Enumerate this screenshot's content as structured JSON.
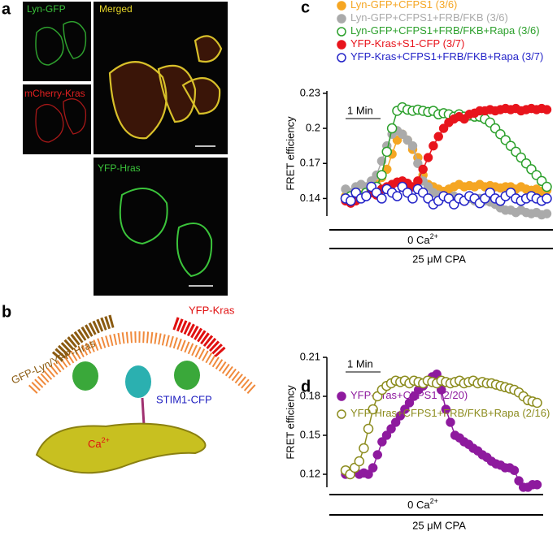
{
  "panel_a": {
    "letter": "a",
    "labels": [
      "Lyn-GFP",
      "mCherry-Kras",
      "Merged",
      "YFP-Hras"
    ]
  },
  "panel_b": {
    "letter": "b",
    "labels": [
      "GFP-Lyn/YFP-Hras",
      "YFP-Kras",
      "STIM1-CFP"
    ],
    "ion": "Ca",
    "ion_charge": "2+"
  },
  "chart_data": [
    {
      "type": "line",
      "panel": "c",
      "ylabel": "FRET efficiency",
      "ylim": [
        0.125,
        0.232
      ],
      "yticks": [
        0.14,
        0.17,
        0.2,
        0.23
      ],
      "annotations": {
        "scale_bar": "1 Min",
        "condition": "0 Ca",
        "condition_charge": "2+",
        "treatment": "25 μM CPA"
      },
      "series": [
        {
          "name": "Lyn-GFP+CFPS1",
          "count": "(3/6)",
          "color": "#f5a623",
          "marker": "filled",
          "values": [
            0.142,
            0.14,
            0.145,
            0.143,
            0.147,
            0.15,
            0.152,
            0.158,
            0.165,
            0.178,
            0.19,
            0.195,
            0.19,
            0.182,
            0.175,
            0.16,
            0.152,
            0.15,
            0.148,
            0.146,
            0.148,
            0.15,
            0.152,
            0.15,
            0.151,
            0.15,
            0.152,
            0.15,
            0.151,
            0.15,
            0.149,
            0.15,
            0.15,
            0.148,
            0.15,
            0.148,
            0.147,
            0.148,
            0.146,
            0.147
          ]
        },
        {
          "name": "Lyn-GFP+CFPS1+FRB/FKB",
          "count": "(3/6)",
          "color": "#aaaaaa",
          "marker": "filled",
          "values": [
            0.148,
            0.145,
            0.15,
            0.152,
            0.15,
            0.155,
            0.16,
            0.172,
            0.185,
            0.195,
            0.198,
            0.195,
            0.19,
            0.185,
            0.17,
            0.155,
            0.15,
            0.145,
            0.143,
            0.142,
            0.14,
            0.142,
            0.14,
            0.138,
            0.14,
            0.138,
            0.14,
            0.138,
            0.137,
            0.135,
            0.132,
            0.13,
            0.13,
            0.128,
            0.13,
            0.128,
            0.127,
            0.128,
            0.126,
            0.127
          ]
        },
        {
          "name": "Lyn-GFP+CFPS1+FRB/FKB+Rapa",
          "count": "(3/6)",
          "color": "#2ca02c",
          "marker": "open",
          "values": [
            0.14,
            0.142,
            0.145,
            0.142,
            0.145,
            0.148,
            0.15,
            0.16,
            0.18,
            0.2,
            0.215,
            0.218,
            0.216,
            0.215,
            0.216,
            0.215,
            0.214,
            0.215,
            0.212,
            0.213,
            0.212,
            0.21,
            0.212,
            0.21,
            0.211,
            0.21,
            0.21,
            0.208,
            0.205,
            0.2,
            0.195,
            0.19,
            0.185,
            0.18,
            0.175,
            0.17,
            0.165,
            0.16,
            0.155,
            0.15
          ]
        },
        {
          "name": "YFP-Kras+S1-CFP",
          "count": "(3/7)",
          "color": "#e8141c",
          "marker": "filled",
          "values": [
            0.138,
            0.136,
            0.138,
            0.14,
            0.142,
            0.145,
            0.143,
            0.148,
            0.15,
            0.152,
            0.154,
            0.155,
            0.153,
            0.15,
            0.155,
            0.165,
            0.175,
            0.185,
            0.193,
            0.2,
            0.205,
            0.208,
            0.21,
            0.208,
            0.212,
            0.213,
            0.215,
            0.215,
            0.216,
            0.215,
            0.216,
            0.217,
            0.216,
            0.217,
            0.215,
            0.216,
            0.217,
            0.216,
            0.217,
            0.216
          ]
        },
        {
          "name": "YFP-Kras+CFPS1+FRB/FKB+Rapa",
          "count": "(3/7)",
          "color": "#2424c8",
          "marker": "open",
          "values": [
            0.14,
            0.138,
            0.145,
            0.14,
            0.142,
            0.15,
            0.145,
            0.14,
            0.148,
            0.145,
            0.142,
            0.15,
            0.145,
            0.14,
            0.148,
            0.145,
            0.14,
            0.135,
            0.138,
            0.142,
            0.14,
            0.135,
            0.14,
            0.138,
            0.142,
            0.14,
            0.136,
            0.14,
            0.145,
            0.14,
            0.138,
            0.142,
            0.145,
            0.14,
            0.138,
            0.14,
            0.142,
            0.14,
            0.138,
            0.14
          ]
        }
      ]
    },
    {
      "type": "line",
      "panel": "d",
      "ylabel": "FRET efficiency",
      "ylim": [
        0.11,
        0.21
      ],
      "yticks": [
        0.12,
        0.15,
        0.18,
        0.21
      ],
      "annotations": {
        "scale_bar": "1 Min",
        "condition": "0 Ca",
        "condition_charge": "2+",
        "treatment": "25 μM CPA"
      },
      "series": [
        {
          "name": "YFP-Hras+CFPS1",
          "count": "(2/20)",
          "color": "#8e1a9e",
          "marker": "filled",
          "values": [
            0.12,
            0.12,
            0.122,
            0.12,
            0.121,
            0.12,
            0.125,
            0.135,
            0.145,
            0.15,
            0.155,
            0.16,
            0.165,
            0.17,
            0.175,
            0.18,
            0.185,
            0.188,
            0.192,
            0.195,
            0.197,
            0.185,
            0.17,
            0.16,
            0.15,
            0.148,
            0.145,
            0.143,
            0.14,
            0.138,
            0.135,
            0.133,
            0.13,
            0.128,
            0.127,
            0.125,
            0.125,
            0.123,
            0.115,
            0.11,
            0.11,
            0.112,
            0.112
          ]
        },
        {
          "name": "YFP-Hras+CFPS1+FRB/FKB+Rapa",
          "count": "(2/16)",
          "color": "#8c8c1e",
          "marker": "open",
          "values": [
            0.123,
            0.12,
            0.125,
            0.13,
            0.14,
            0.155,
            0.17,
            0.18,
            0.185,
            0.188,
            0.19,
            0.192,
            0.191,
            0.192,
            0.19,
            0.192,
            0.191,
            0.19,
            0.192,
            0.191,
            0.19,
            0.192,
            0.191,
            0.19,
            0.191,
            0.192,
            0.19,
            0.191,
            0.192,
            0.19,
            0.191,
            0.19,
            0.19,
            0.189,
            0.188,
            0.187,
            0.186,
            0.185,
            0.183,
            0.18,
            0.177,
            0.176,
            0.175
          ]
        }
      ]
    }
  ]
}
